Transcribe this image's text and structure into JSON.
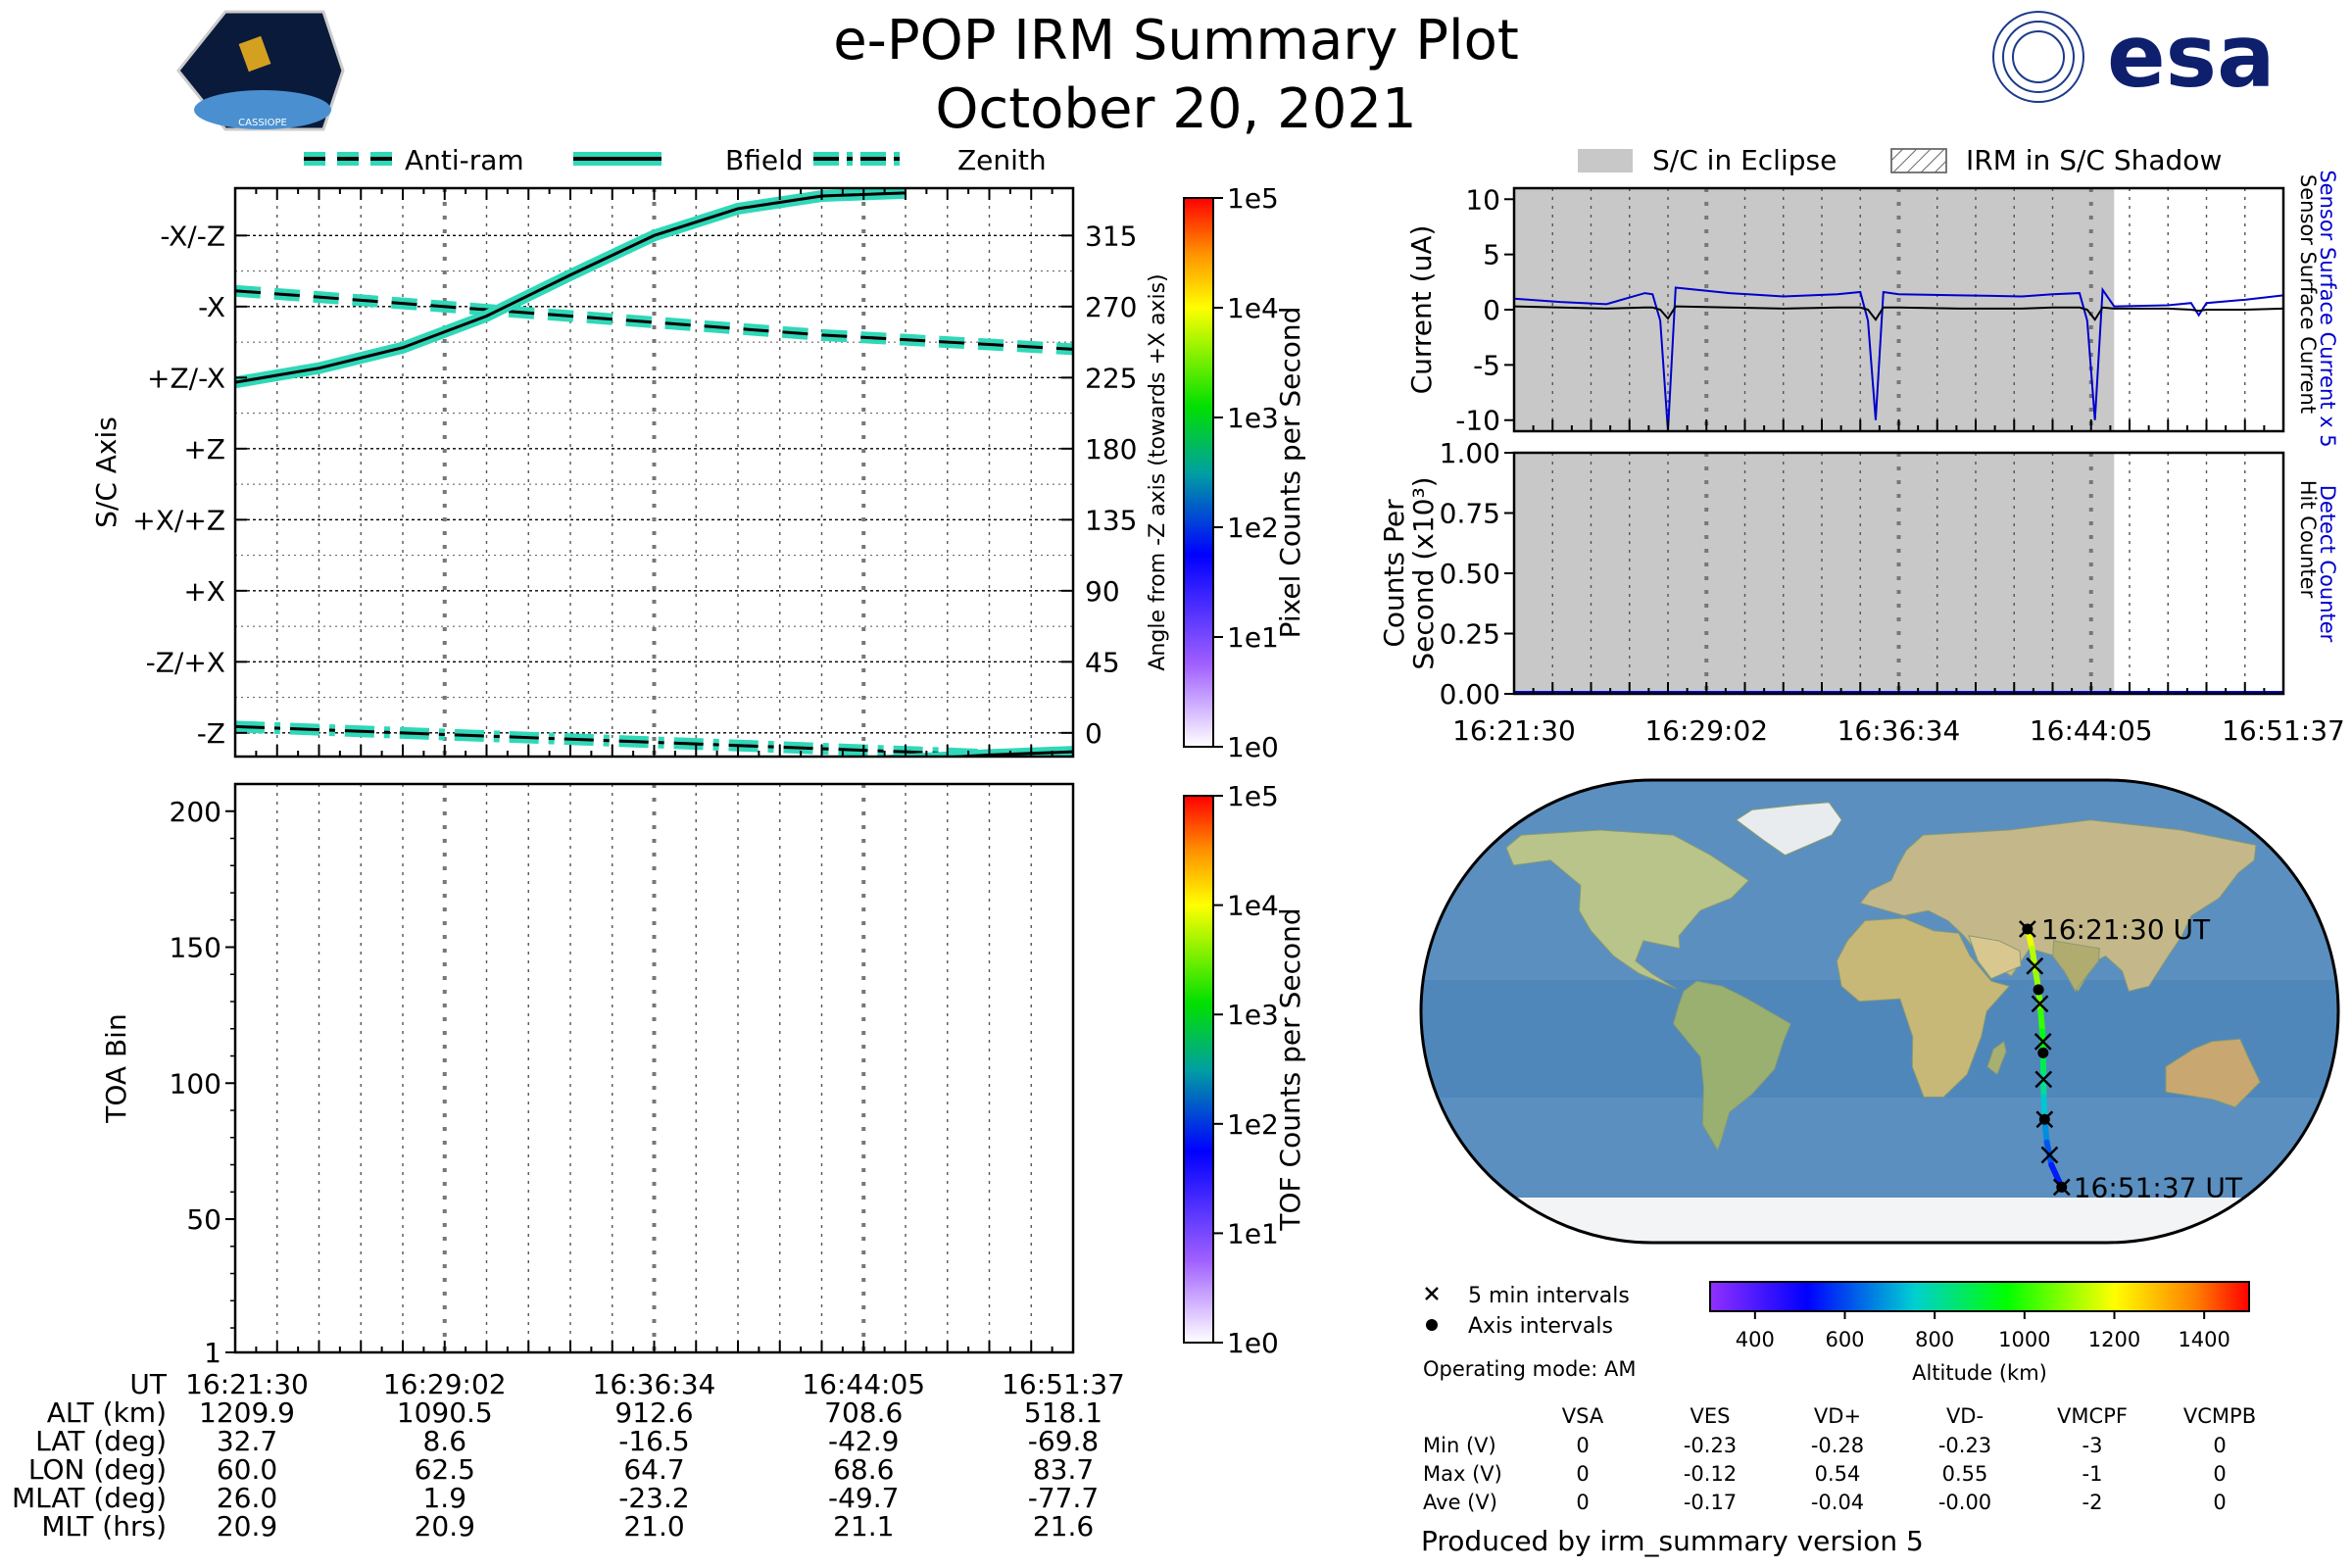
{
  "title": "e-POP IRM Summary Plot",
  "subtitle": "October 20, 2021",
  "logos": {
    "cassiope": "CASSIOPE",
    "esa": "esa"
  },
  "colors": {
    "teal": "#2fd8b8",
    "eclipse": "#c8c8c8",
    "detect": "#0000cc",
    "surface": "#000000"
  },
  "legend_top": [
    "Anti-ram",
    "Bfield",
    "Zenith"
  ],
  "legend_right": [
    "S/C in Eclipse",
    "IRM in S/C Shadow"
  ],
  "time_ticks": [
    "16:21:30",
    "16:29:02",
    "16:36:34",
    "16:44:05",
    "16:51:37"
  ],
  "chart_data": [
    {
      "type": "line",
      "name": "attitude",
      "ylabel": "S/C Axis",
      "y2label": "Angle from -Z axis (towards +X axis)",
      "ylim": [
        -15,
        345
      ],
      "left_ticks": [
        {
          "v": 0,
          "label": "-Z"
        },
        {
          "v": 45,
          "label": "-Z/+X"
        },
        {
          "v": 90,
          "label": "+X"
        },
        {
          "v": 135,
          "label": "+X/+Z"
        },
        {
          "v": 180,
          "label": "+Z"
        },
        {
          "v": 225,
          "label": "+Z/-X"
        },
        {
          "v": 270,
          "label": "-X"
        },
        {
          "v": 315,
          "label": "-X/-Z"
        }
      ],
      "right_ticks": [
        0,
        45,
        90,
        135,
        180,
        225,
        270,
        315
      ],
      "x": [
        0,
        0.1,
        0.2,
        0.3,
        0.4,
        0.5,
        0.6,
        0.7,
        0.8,
        0.9,
        1.0
      ],
      "series": [
        {
          "name": "Anti-ram",
          "style": "dashed",
          "values": [
            280,
            276,
            272,
            268,
            264,
            260,
            256,
            252,
            249,
            246,
            243
          ]
        },
        {
          "name": "Bfield",
          "style": "solid",
          "values": [
            222,
            231,
            244,
            264,
            290,
            315,
            332,
            340,
            342,
            null,
            null
          ]
        },
        {
          "name": "Zenith",
          "style": "dashdot",
          "values": [
            4,
            2,
            0,
            -2,
            -4,
            -6,
            -8,
            -10,
            -12,
            -14,
            -16
          ]
        }
      ],
      "bfield_tail": {
        "x": [
          0.7,
          0.8,
          0.9,
          1.0
        ],
        "values": [
          -20,
          -17,
          -14,
          -12
        ]
      },
      "colorbar": {
        "label": "Pixel Counts per Second",
        "ticks": [
          "1e0",
          "1e1",
          "1e2",
          "1e3",
          "1e4",
          "1e5"
        ]
      }
    },
    {
      "type": "heatmap",
      "name": "toa",
      "ylabel": "TOA Bin",
      "ylim": [
        1,
        210
      ],
      "yticks": [
        1,
        50,
        100,
        150,
        200
      ],
      "values": [],
      "colorbar": {
        "label": "TOF Counts per Second",
        "ticks": [
          "1e0",
          "1e1",
          "1e2",
          "1e3",
          "1e4",
          "1e5"
        ]
      }
    },
    {
      "type": "line",
      "name": "current",
      "ylabel": "Current (uA)",
      "ylim": [
        -11,
        11
      ],
      "yticks": [
        -10,
        -5,
        0,
        5,
        10
      ],
      "eclipse_end": 0.78,
      "x": [
        0,
        0.06,
        0.12,
        0.17,
        0.18,
        0.19,
        0.2,
        0.21,
        0.28,
        0.35,
        0.42,
        0.45,
        0.46,
        0.47,
        0.48,
        0.5,
        0.58,
        0.66,
        0.7,
        0.735,
        0.745,
        0.755,
        0.765,
        0.78,
        0.85,
        0.88,
        0.89,
        0.9,
        0.95,
        1.0
      ],
      "series": [
        {
          "name": "Sensor Surface Current x 5",
          "color": "#0000cc",
          "values": [
            1,
            0.7,
            0.5,
            1.5,
            1.4,
            -1,
            -11,
            2,
            1.5,
            1.2,
            1.4,
            1.6,
            -1,
            -10,
            1.6,
            1.4,
            1.3,
            1.2,
            1.4,
            1.5,
            -1,
            -10,
            1.8,
            0.3,
            0.4,
            0.6,
            -0.5,
            0.6,
            0.9,
            1.3
          ]
        },
        {
          "name": "Sensor Surface Current",
          "color": "#000000",
          "values": [
            0.3,
            0.2,
            0.1,
            0.2,
            0.2,
            0,
            -0.8,
            0.3,
            0.2,
            0.1,
            0.2,
            0.2,
            0,
            -0.9,
            0.2,
            0.2,
            0.1,
            0.1,
            0.2,
            0.2,
            0,
            -0.9,
            0.2,
            0.1,
            0.1,
            0,
            -0.1,
            0,
            0,
            0.1
          ]
        }
      ]
    },
    {
      "type": "line",
      "name": "counts",
      "ylabel": "Counts Per",
      "ylabel2": "Second (x10³)",
      "ylim": [
        0,
        1
      ],
      "yticks": [
        "0.00",
        "0.25",
        "0.50",
        "0.75",
        "1.00"
      ],
      "series": [
        {
          "name": "Detect Counter",
          "color": "#0000cc",
          "values": [
            0,
            0
          ]
        },
        {
          "name": "Hit Counter",
          "color": "#000000",
          "values": [
            0,
            0
          ]
        }
      ]
    }
  ],
  "table": {
    "rows": [
      {
        "label": "UT",
        "values": [
          "16:21:30",
          "16:29:02",
          "16:36:34",
          "16:44:05",
          "16:51:37"
        ]
      },
      {
        "label": "ALT (km)",
        "values": [
          "1209.9",
          "1090.5",
          "912.6",
          "708.6",
          "518.1"
        ]
      },
      {
        "label": "LAT (deg)",
        "values": [
          "32.7",
          "8.6",
          "-16.5",
          "-42.9",
          "-69.8"
        ]
      },
      {
        "label": "LON (deg)",
        "values": [
          "60.0",
          "62.5",
          "64.7",
          "68.6",
          "83.7"
        ]
      },
      {
        "label": "MLAT (deg)",
        "values": [
          "26.0",
          "1.9",
          "-23.2",
          "-49.7",
          "-77.7"
        ]
      },
      {
        "label": "MLT (hrs)",
        "values": [
          "20.9",
          "20.9",
          "21.0",
          "21.1",
          "21.6"
        ]
      }
    ]
  },
  "map": {
    "start_label": "16:21:30 UT",
    "end_label": "16:51:37 UT",
    "track": {
      "lat": [
        32.7,
        25,
        15,
        8.6,
        0,
        -8,
        -16.5,
        -25,
        -34,
        -42.9,
        -52,
        -61,
        -69.8
      ],
      "lon": [
        60,
        61,
        61.8,
        62.5,
        63.2,
        64,
        64.7,
        65.5,
        66.8,
        68.6,
        71.5,
        76,
        83.7
      ]
    },
    "markers_5min": {
      "lat": [
        32.7,
        18,
        3,
        -12,
        -27,
        -42.9,
        -57,
        -69.8
      ],
      "lon": [
        60,
        61.5,
        62.9,
        64.4,
        65.8,
        68.6,
        74,
        83.7
      ]
    },
    "markers_axis": {
      "lat": [
        32.7,
        8.6,
        -16.5,
        -42.9,
        -69.8
      ],
      "lon": [
        60,
        62.5,
        64.7,
        68.6,
        83.7
      ]
    }
  },
  "map_legend": {
    "five_min": "5 min intervals",
    "axis": "Axis intervals",
    "mode": "Operating mode: AM"
  },
  "altitude_bar": {
    "label": "Altitude (km)",
    "min": 300,
    "max": 1500,
    "ticks": [
      400,
      600,
      800,
      1000,
      1200,
      1400
    ]
  },
  "voltage_table": {
    "headers": [
      "VSA",
      "VES",
      "VD+",
      "VD-",
      "VMCPF",
      "VCMPB"
    ],
    "rows": [
      {
        "label": "Min (V)",
        "values": [
          "0",
          "-0.23",
          "-0.28",
          "-0.23",
          "-3",
          "0"
        ]
      },
      {
        "label": "Max (V)",
        "values": [
          "0",
          "-0.12",
          "0.54",
          "0.55",
          "-1",
          "0"
        ]
      },
      {
        "label": "Ave (V)",
        "values": [
          "0",
          "-0.17",
          "-0.04",
          "-0.00",
          "-2",
          "0"
        ]
      }
    ]
  },
  "footer": "Produced by irm_summary version 5"
}
